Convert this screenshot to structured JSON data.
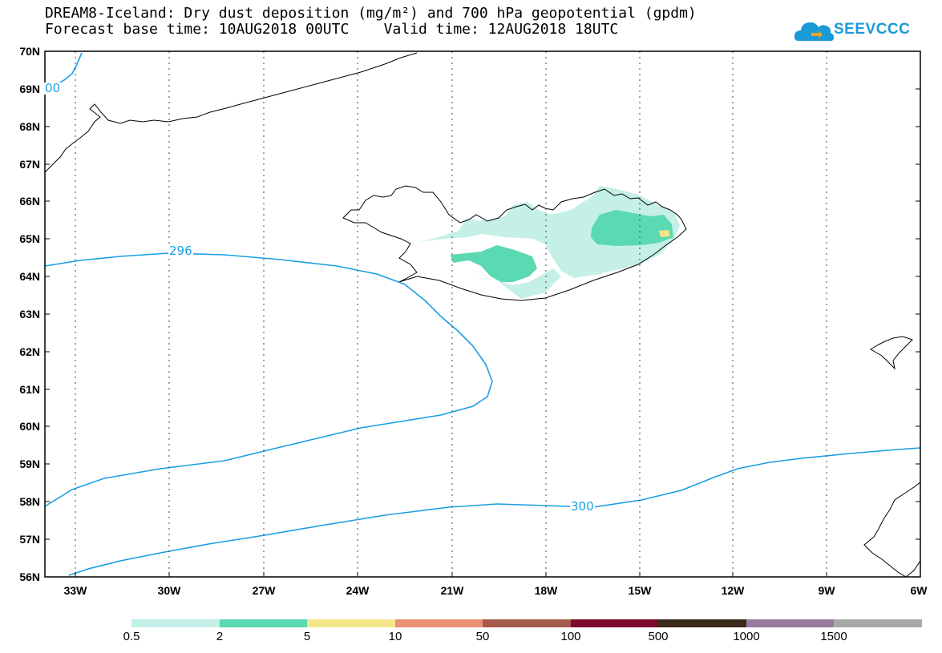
{
  "title_line1": "DREAM8-Iceland: Dry dust deposition (mg/m²) and 700 hPa geopotential (gpdm)",
  "title_line2": "Forecast base time: 10AUG2018 00UTC    Valid time: 12AUG2018 18UTC",
  "logo_text": "SEEVCCC",
  "logo_icon": "cloud-icon",
  "lat_labels": [
    "70N",
    "69N",
    "68N",
    "67N",
    "66N",
    "65N",
    "64N",
    "63N",
    "62N",
    "61N",
    "60N",
    "59N",
    "58N",
    "57N",
    "56N"
  ],
  "lon_labels": [
    "33W",
    "30W",
    "27W",
    "24W",
    "21W",
    "18W",
    "15W",
    "12W",
    "9W",
    "6W"
  ],
  "contour_labels": [
    "00",
    "296",
    "300"
  ],
  "colorbar": {
    "levels": [
      "0.5",
      "2",
      "5",
      "10",
      "50",
      "100",
      "500",
      "1000",
      "1500"
    ],
    "colors": [
      "#c4f0e8",
      "#5bd9b3",
      "#f5e68a",
      "#ec9175",
      "#a45a4c",
      "#7c0a2c",
      "#3a2a1a",
      "#9a78a0",
      "#a8a8a8"
    ]
  },
  "colors": {
    "contour": "#1a9ee2",
    "coast": "#000000"
  }
}
